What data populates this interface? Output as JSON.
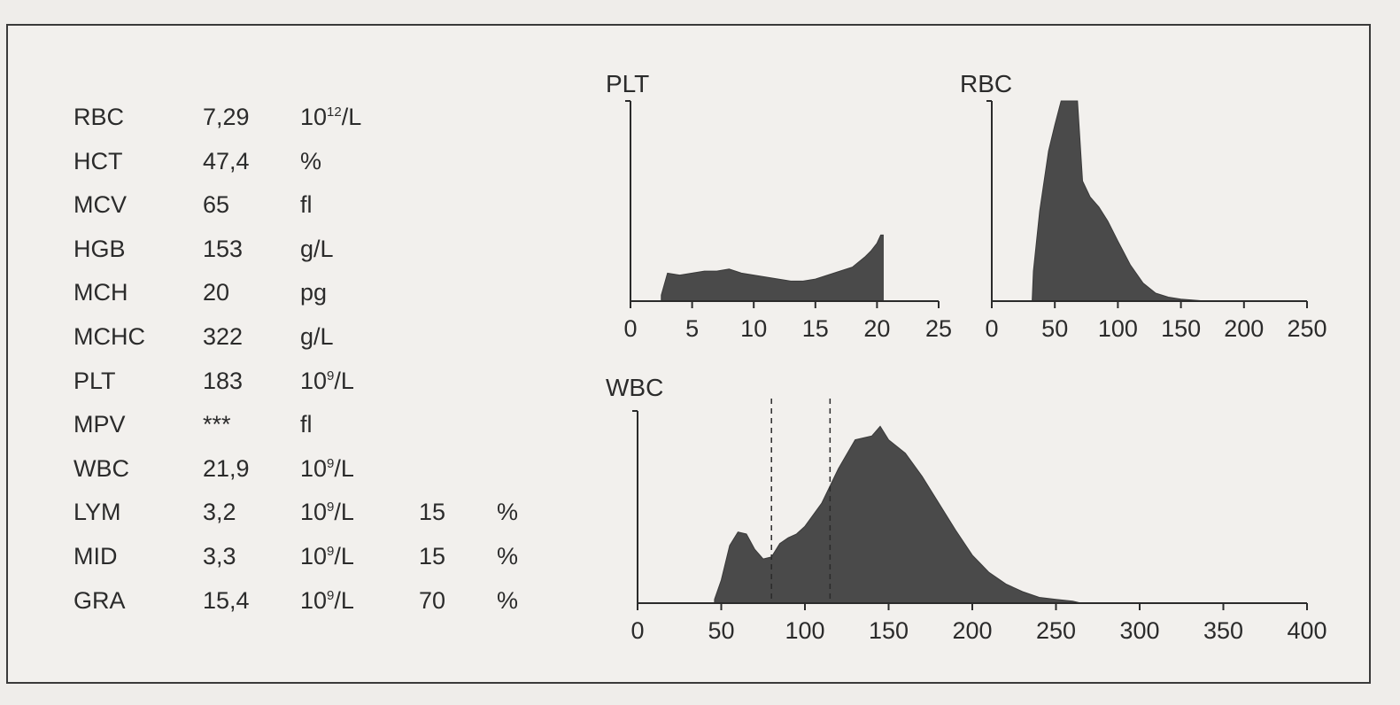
{
  "rows": [
    {
      "name": "RBC",
      "value": "7,29",
      "unit_base": "10",
      "unit_exp": "12",
      "unit_rest": "/L"
    },
    {
      "name": "HCT",
      "value": "47,4",
      "unit_base": "%"
    },
    {
      "name": "MCV",
      "value": "65",
      "unit_base": "fl"
    },
    {
      "name": "HGB",
      "value": "153",
      "unit_base": "g/L"
    },
    {
      "name": "MCH",
      "value": "20",
      "unit_base": "pg"
    },
    {
      "name": "MCHC",
      "value": "322",
      "unit_base": "g/L"
    },
    {
      "name": "PLT",
      "value": "183",
      "unit_base": "10",
      "unit_exp": "9",
      "unit_rest": "/L"
    },
    {
      "name": "MPV",
      "value": "***",
      "unit_base": "fl"
    },
    {
      "name": "WBC",
      "value": "21,9",
      "unit_base": "10",
      "unit_exp": "9",
      "unit_rest": "/L"
    },
    {
      "name": "LYM",
      "value": "3,2",
      "unit_base": "10",
      "unit_exp": "9",
      "unit_rest": "/L",
      "pct": "15",
      "pct_unit": "%"
    },
    {
      "name": "MID",
      "value": "3,3",
      "unit_base": "10",
      "unit_exp": "9",
      "unit_rest": "/L",
      "pct": "15",
      "pct_unit": "%"
    },
    {
      "name": "GRA",
      "value": "15,4",
      "unit_base": "10",
      "unit_exp": "9",
      "unit_rest": "/L",
      "pct": "70",
      "pct_unit": "%"
    }
  ],
  "chart_data": [
    {
      "type": "area",
      "title": "PLT",
      "xlim": [
        0,
        25
      ],
      "xticks": [
        0,
        5,
        10,
        15,
        20,
        25
      ],
      "x": [
        2.5,
        3,
        4,
        5,
        6,
        7,
        8,
        9,
        10,
        11,
        12,
        13,
        14,
        15,
        16,
        17,
        18,
        19,
        19.5,
        20,
        20.3,
        20.5
      ],
      "y": [
        0.03,
        0.14,
        0.13,
        0.14,
        0.15,
        0.15,
        0.16,
        0.14,
        0.13,
        0.12,
        0.11,
        0.1,
        0.1,
        0.11,
        0.13,
        0.15,
        0.17,
        0.22,
        0.25,
        0.29,
        0.33,
        0.33
      ],
      "ylim": [
        0,
        1
      ]
    },
    {
      "type": "area",
      "title": "RBC",
      "xlim": [
        0,
        250
      ],
      "xticks": [
        0,
        50,
        100,
        150,
        200,
        250
      ],
      "x": [
        32,
        33,
        38,
        45,
        50,
        55,
        62,
        68,
        72,
        78,
        85,
        92,
        100,
        110,
        120,
        130,
        140,
        150,
        160,
        170
      ],
      "y": [
        0,
        0.15,
        0.45,
        0.75,
        0.88,
        1.0,
        1.0,
        1.0,
        0.6,
        0.52,
        0.47,
        0.4,
        0.3,
        0.18,
        0.09,
        0.04,
        0.02,
        0.01,
        0.005,
        0
      ],
      "ylim": [
        0,
        1
      ]
    },
    {
      "type": "area",
      "title": "WBC",
      "xlim": [
        0,
        400
      ],
      "xticks": [
        0,
        50,
        100,
        150,
        200,
        250,
        300,
        350,
        400
      ],
      "x": [
        46,
        50,
        55,
        60,
        65,
        70,
        75,
        80,
        85,
        90,
        95,
        100,
        110,
        120,
        130,
        140,
        145,
        150,
        160,
        170,
        180,
        190,
        200,
        210,
        220,
        230,
        240,
        250,
        260,
        265
      ],
      "y": [
        0.02,
        0.12,
        0.3,
        0.37,
        0.36,
        0.28,
        0.23,
        0.24,
        0.31,
        0.34,
        0.36,
        0.4,
        0.52,
        0.7,
        0.85,
        0.87,
        0.92,
        0.85,
        0.78,
        0.66,
        0.52,
        0.38,
        0.25,
        0.16,
        0.1,
        0.06,
        0.03,
        0.02,
        0.01,
        0
      ],
      "ylim": [
        0,
        1
      ],
      "markers": [
        80,
        115
      ]
    }
  ]
}
